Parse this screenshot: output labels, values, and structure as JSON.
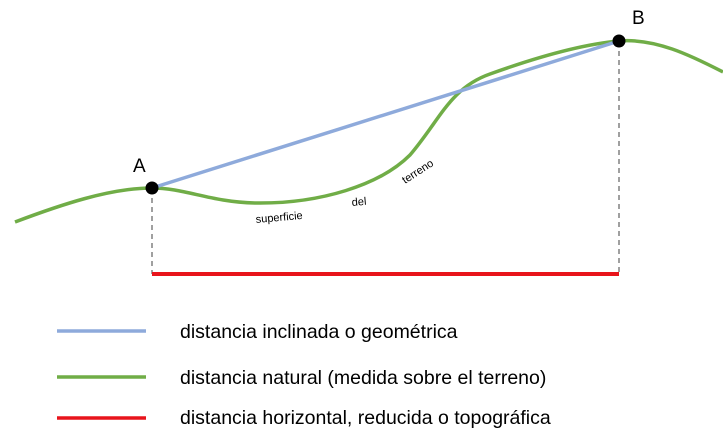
{
  "points": {
    "a_label": "A",
    "b_label": "B"
  },
  "terrain_labels": [
    "superficie",
    "del",
    "terreno"
  ],
  "colors": {
    "inclined": "#8eaadb",
    "natural": "#70ad47",
    "horizontal": "#e8141b",
    "projection": "#808080",
    "point": "#000000"
  },
  "legend": [
    {
      "label": "distancia inclinada o geométrica",
      "color": "#8eaadb"
    },
    {
      "label": "distancia natural (medida sobre el terreno)",
      "color": "#70ad47"
    },
    {
      "label": "distancia horizontal, reducida o topográfica",
      "color": "#e8141b"
    }
  ]
}
